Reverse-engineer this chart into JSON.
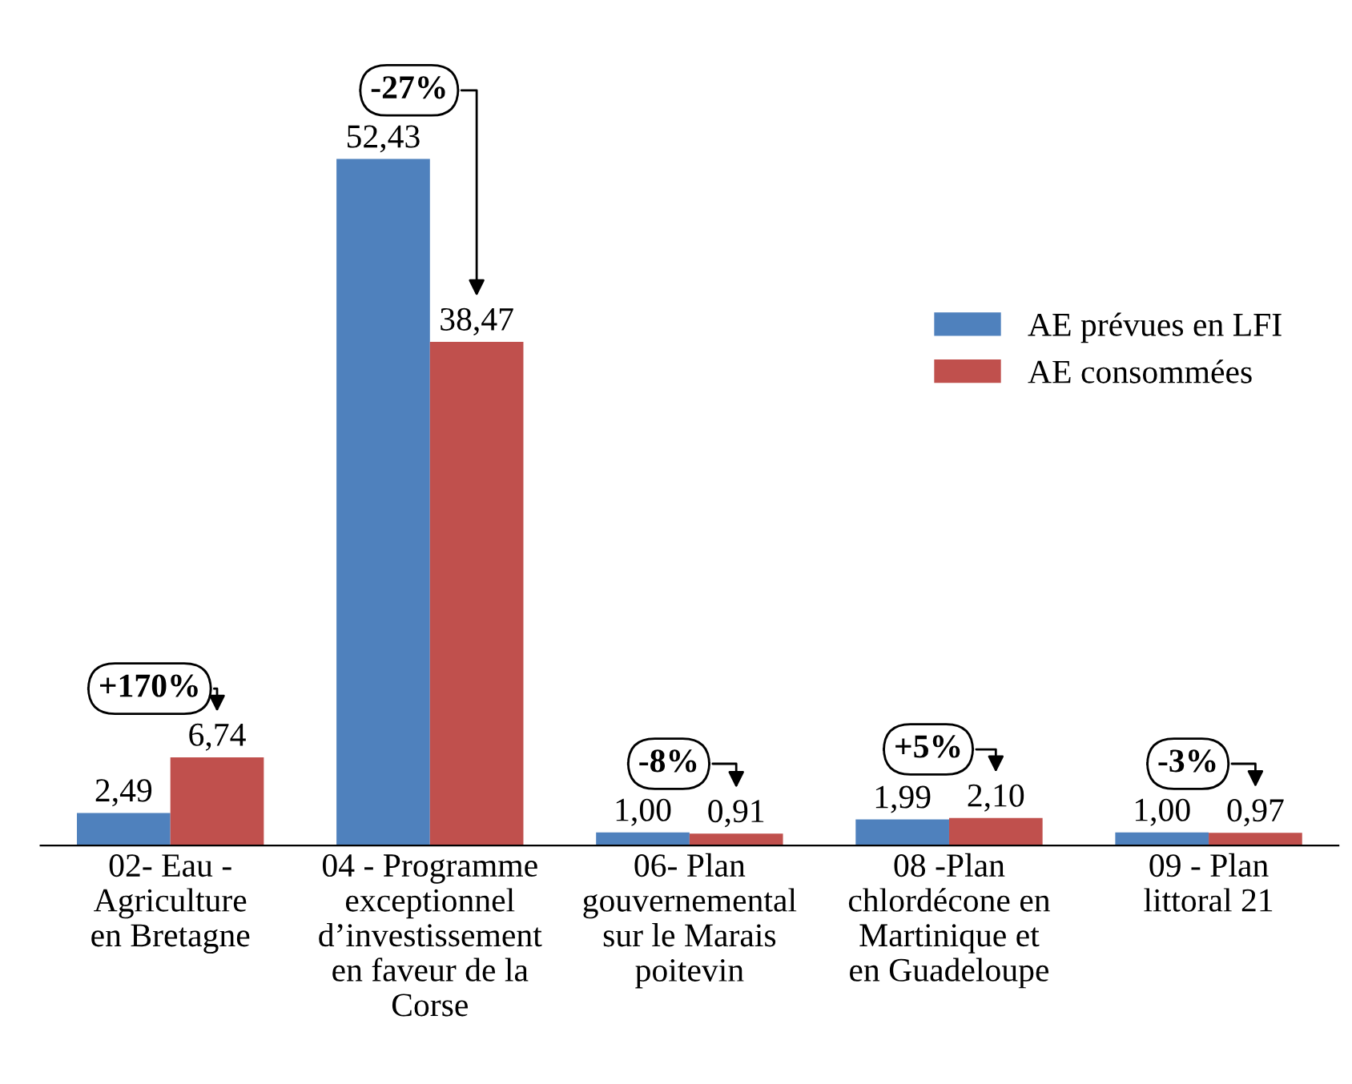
{
  "chart_data": {
    "type": "bar",
    "categories": [
      "02- Eau -\nAgriculture\nen Bretagne",
      "04 - Programme\nexceptionnel\nd’investissement\nen faveur de la\nCorse",
      "06- Plan\ngouvernemental\nsur le Marais\npoitevin",
      "08 -Plan\nchlordécone en\nMartinique et\nen Guadeloupe",
      "09 - Plan\nlittoral 21"
    ],
    "series": [
      {
        "name": "AE prévues en LFI",
        "color": "#4f81bd",
        "values": [
          2.49,
          52.43,
          1.0,
          1.99,
          1.0
        ],
        "value_labels": [
          "2,49",
          "52,43",
          "1,00",
          "1,99",
          "1,00"
        ]
      },
      {
        "name": "AE consommées",
        "color": "#c0504d",
        "values": [
          6.74,
          38.47,
          0.91,
          2.1,
          0.97
        ],
        "value_labels": [
          "6,74",
          "38,47",
          "0,91",
          "2,10",
          "0,97"
        ]
      }
    ],
    "annotations": [
      "+170%",
      "-27%",
      "-8%",
      "+5%",
      "-3%"
    ],
    "legend": "right",
    "grid": false,
    "tick_labels": "x"
  }
}
